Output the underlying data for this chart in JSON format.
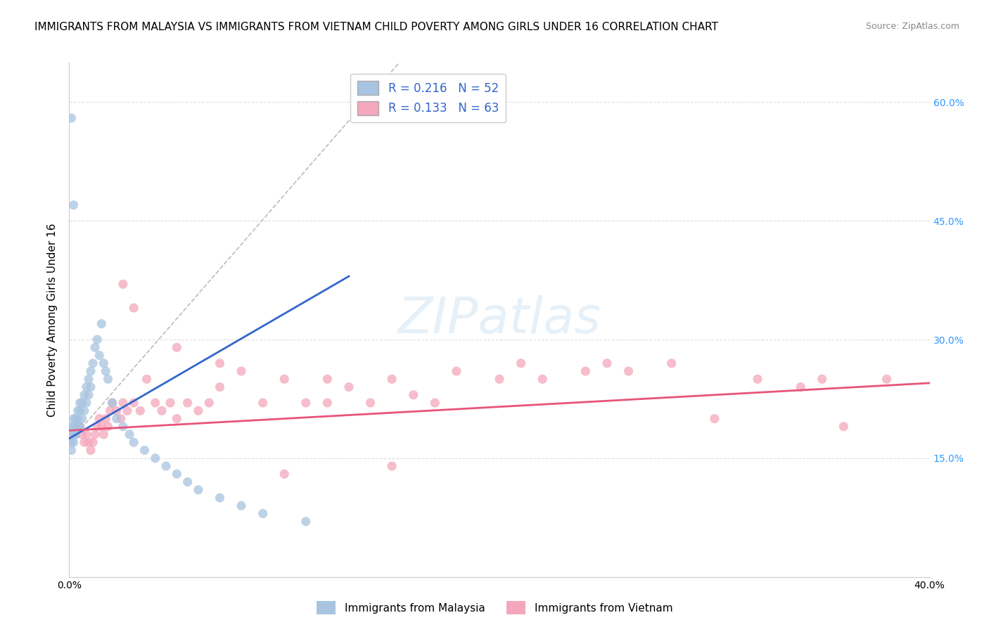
{
  "title": "IMMIGRANTS FROM MALAYSIA VS IMMIGRANTS FROM VIETNAM CHILD POVERTY AMONG GIRLS UNDER 16 CORRELATION CHART",
  "source": "Source: ZipAtlas.com",
  "ylabel": "Child Poverty Among Girls Under 16",
  "xlim": [
    0,
    0.4
  ],
  "ylim": [
    0,
    0.65
  ],
  "malaysia_R": 0.216,
  "malaysia_N": 52,
  "vietnam_R": 0.133,
  "vietnam_N": 63,
  "malaysia_color": "#a8c4e0",
  "vietnam_color": "#f4a7bc",
  "malaysia_line_color": "#3366cc",
  "vietnam_line_color": "#e8547a",
  "diag_color": "#bbbbbb",
  "background_color": "#ffffff",
  "grid_color": "#dddddd",
  "right_tick_color": "#3399ff",
  "title_fontsize": 11,
  "axis_label_fontsize": 11,
  "tick_fontsize": 10,
  "legend_fontsize": 12,
  "source_fontsize": 9,
  "malaysia_x": [
    0.001,
    0.001,
    0.001,
    0.001,
    0.002,
    0.002,
    0.002,
    0.002,
    0.003,
    0.003,
    0.003,
    0.004,
    0.004,
    0.004,
    0.005,
    0.005,
    0.005,
    0.006,
    0.006,
    0.007,
    0.007,
    0.008,
    0.008,
    0.009,
    0.009,
    0.01,
    0.01,
    0.011,
    0.012,
    0.013,
    0.014,
    0.015,
    0.016,
    0.017,
    0.018,
    0.02,
    0.022,
    0.025,
    0.028,
    0.03,
    0.035,
    0.04,
    0.045,
    0.05,
    0.055,
    0.06,
    0.07,
    0.08,
    0.09,
    0.11,
    0.001,
    0.002
  ],
  "malaysia_y": [
    0.19,
    0.18,
    0.17,
    0.16,
    0.2,
    0.19,
    0.18,
    0.17,
    0.2,
    0.19,
    0.18,
    0.21,
    0.2,
    0.19,
    0.22,
    0.21,
    0.19,
    0.22,
    0.2,
    0.23,
    0.21,
    0.24,
    0.22,
    0.25,
    0.23,
    0.26,
    0.24,
    0.27,
    0.29,
    0.3,
    0.28,
    0.32,
    0.27,
    0.26,
    0.25,
    0.22,
    0.2,
    0.19,
    0.18,
    0.17,
    0.16,
    0.15,
    0.14,
    0.13,
    0.12,
    0.11,
    0.1,
    0.09,
    0.08,
    0.07,
    0.58,
    0.47
  ],
  "vietnam_x": [
    0.003,
    0.005,
    0.006,
    0.007,
    0.008,
    0.009,
    0.01,
    0.011,
    0.012,
    0.013,
    0.014,
    0.015,
    0.016,
    0.017,
    0.018,
    0.019,
    0.02,
    0.022,
    0.024,
    0.025,
    0.027,
    0.03,
    0.033,
    0.036,
    0.04,
    0.043,
    0.047,
    0.05,
    0.055,
    0.06,
    0.065,
    0.07,
    0.08,
    0.09,
    0.1,
    0.11,
    0.12,
    0.13,
    0.14,
    0.15,
    0.16,
    0.17,
    0.18,
    0.2,
    0.21,
    0.22,
    0.24,
    0.25,
    0.26,
    0.28,
    0.3,
    0.32,
    0.34,
    0.35,
    0.36,
    0.38,
    0.025,
    0.05,
    0.1,
    0.15,
    0.03,
    0.07,
    0.12
  ],
  "vietnam_y": [
    0.18,
    0.19,
    0.18,
    0.17,
    0.18,
    0.17,
    0.16,
    0.17,
    0.18,
    0.19,
    0.2,
    0.19,
    0.18,
    0.2,
    0.19,
    0.21,
    0.22,
    0.21,
    0.2,
    0.22,
    0.21,
    0.22,
    0.21,
    0.25,
    0.22,
    0.21,
    0.22,
    0.2,
    0.22,
    0.21,
    0.22,
    0.24,
    0.26,
    0.22,
    0.25,
    0.22,
    0.25,
    0.24,
    0.22,
    0.25,
    0.23,
    0.22,
    0.26,
    0.25,
    0.27,
    0.25,
    0.26,
    0.27,
    0.26,
    0.27,
    0.2,
    0.25,
    0.24,
    0.25,
    0.19,
    0.25,
    0.37,
    0.29,
    0.13,
    0.14,
    0.34,
    0.27,
    0.22
  ],
  "malaysia_line_x": [
    0.0,
    0.13
  ],
  "malaysia_line_y": [
    0.175,
    0.38
  ],
  "vietnam_line_x": [
    0.0,
    0.4
  ],
  "vietnam_line_y": [
    0.185,
    0.245
  ],
  "diag_line_x": [
    0.0,
    0.155
  ],
  "diag_line_y": [
    0.17,
    0.655
  ]
}
